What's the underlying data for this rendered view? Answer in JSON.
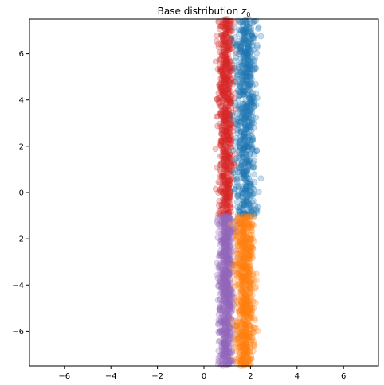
{
  "chart_data": {
    "type": "scatter",
    "title": "Base distribution z₀",
    "title_main": "Base distribution ",
    "title_var": "z",
    "title_sub": "0",
    "xlabel": "",
    "ylabel": "",
    "xlim": [
      -7.5,
      7.5
    ],
    "ylim": [
      -7.5,
      7.5
    ],
    "x_ticks": [
      -6,
      -4,
      -2,
      0,
      2,
      4,
      6
    ],
    "y_ticks": [
      -6,
      -4,
      -2,
      0,
      2,
      4,
      6
    ],
    "grid": false,
    "marker_opacity": 0.25,
    "series": [
      {
        "color": "#d62728",
        "x_range": [
          0.6,
          1.3
        ],
        "y_range": [
          -1.0,
          7.5
        ],
        "density": "dense-strip"
      },
      {
        "color": "#1f77b4",
        "x_range": [
          1.3,
          2.3
        ],
        "y_range": [
          -1.0,
          7.5
        ],
        "density": "dense-strip"
      },
      {
        "color": "#9467bd",
        "x_range": [
          0.6,
          1.3
        ],
        "y_range": [
          -7.5,
          -1.0
        ],
        "density": "dense-strip"
      },
      {
        "color": "#ff7f0e",
        "x_range": [
          1.3,
          2.2
        ],
        "y_range": [
          -7.5,
          -1.0
        ],
        "density": "dense-strip"
      }
    ]
  }
}
